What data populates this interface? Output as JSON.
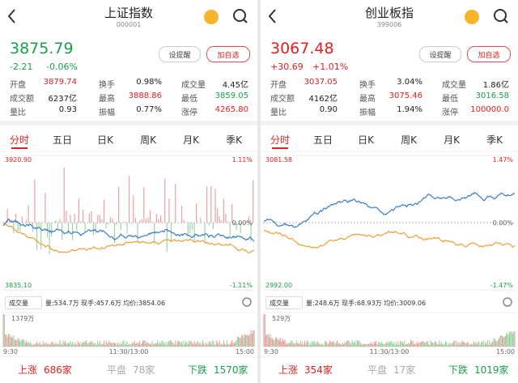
{
  "panels": [
    {
      "title": "上证指数",
      "code": "000001",
      "price": "3875.79",
      "price_color": "#1a9e4a",
      "change": "-2.21",
      "change_pct": "-0.06%",
      "alert": "设提醒",
      "watch": "加自选",
      "stats": [
        [
          {
            "label": "开盘",
            "value": "3879.74",
            "color": "#e02020"
          },
          {
            "label": "换手",
            "value": "0.98%",
            "color": "#222222"
          },
          {
            "label": "成交量",
            "value": "4.45亿",
            "color": "#222222"
          }
        ],
        [
          {
            "label": "成交额",
            "value": "6237亿",
            "color": "#222222"
          },
          {
            "label": "最高",
            "value": "3888.86",
            "color": "#e02020"
          },
          {
            "label": "最低",
            "value": "3859.05",
            "color": "#1a9e4a"
          }
        ],
        [
          {
            "label": "量比",
            "value": "0.93",
            "color": "#222222"
          },
          {
            "label": "振幅",
            "value": "0.77%",
            "color": "#222222"
          },
          {
            "label": "涨停",
            "value": "4265.80",
            "color": "#e02020"
          }
        ]
      ],
      "tabs": [
        "分时",
        "五日",
        "日K",
        "周K",
        "月K",
        "季K"
      ],
      "chart": {
        "high": "3920.90",
        "high_pct": "1.11%",
        "low": "3835.10",
        "low_pct": "-1.11%",
        "mid_pct": "0.00%"
      },
      "volume": {
        "label": "成交量",
        "info": "量:534.7万 现手:457.6万 均价:3854.06",
        "max": "1379万",
        "times": [
          "9:30",
          "11:30/13:00",
          "15:00"
        ]
      },
      "breadth": [
        {
          "label": "上涨",
          "value": "686家"
        },
        {
          "label": "平盘",
          "value": "78家"
        },
        {
          "label": "下跌",
          "value": "1570家"
        }
      ]
    },
    {
      "title": "创业板指",
      "code": "399006",
      "price": "3067.48",
      "price_color": "#e02020",
      "change": "+30.69",
      "change_pct": "+1.01%",
      "alert": "设提醒",
      "watch": "加自选",
      "stats": [
        [
          {
            "label": "开盘",
            "value": "3037.05",
            "color": "#e02020"
          },
          {
            "label": "换手",
            "value": "3.04%",
            "color": "#222222"
          },
          {
            "label": "成交量",
            "value": "1.86亿",
            "color": "#222222"
          }
        ],
        [
          {
            "label": "成交额",
            "value": "4162亿",
            "color": "#222222"
          },
          {
            "label": "最高",
            "value": "3075.46",
            "color": "#e02020"
          },
          {
            "label": "最低",
            "value": "3016.58",
            "color": "#1a9e4a"
          }
        ],
        [
          {
            "label": "量比",
            "value": "0.90",
            "color": "#222222"
          },
          {
            "label": "振幅",
            "value": "1.94%",
            "color": "#222222"
          },
          {
            "label": "涨停",
            "value": "100000.0",
            "color": "#e02020"
          }
        ]
      ],
      "tabs": [
        "分时",
        "五日",
        "日K",
        "周K",
        "月K",
        "季K"
      ],
      "chart": {
        "high": "3081.58",
        "high_pct": "1.47%",
        "low": "2992.00",
        "low_pct": "-1.47%",
        "mid_pct": "0.00%"
      },
      "volume": {
        "label": "成交量",
        "info": "量:248.6万 现手:68.93万 均价:3009.06",
        "max": "529万",
        "times": [
          "9:30",
          "11:30/13:00",
          "15:00"
        ]
      },
      "breadth": [
        {
          "label": "上涨",
          "value": "354家"
        },
        {
          "label": "平盘",
          "value": "17家"
        },
        {
          "label": "下跌",
          "value": "1019家"
        }
      ]
    }
  ]
}
